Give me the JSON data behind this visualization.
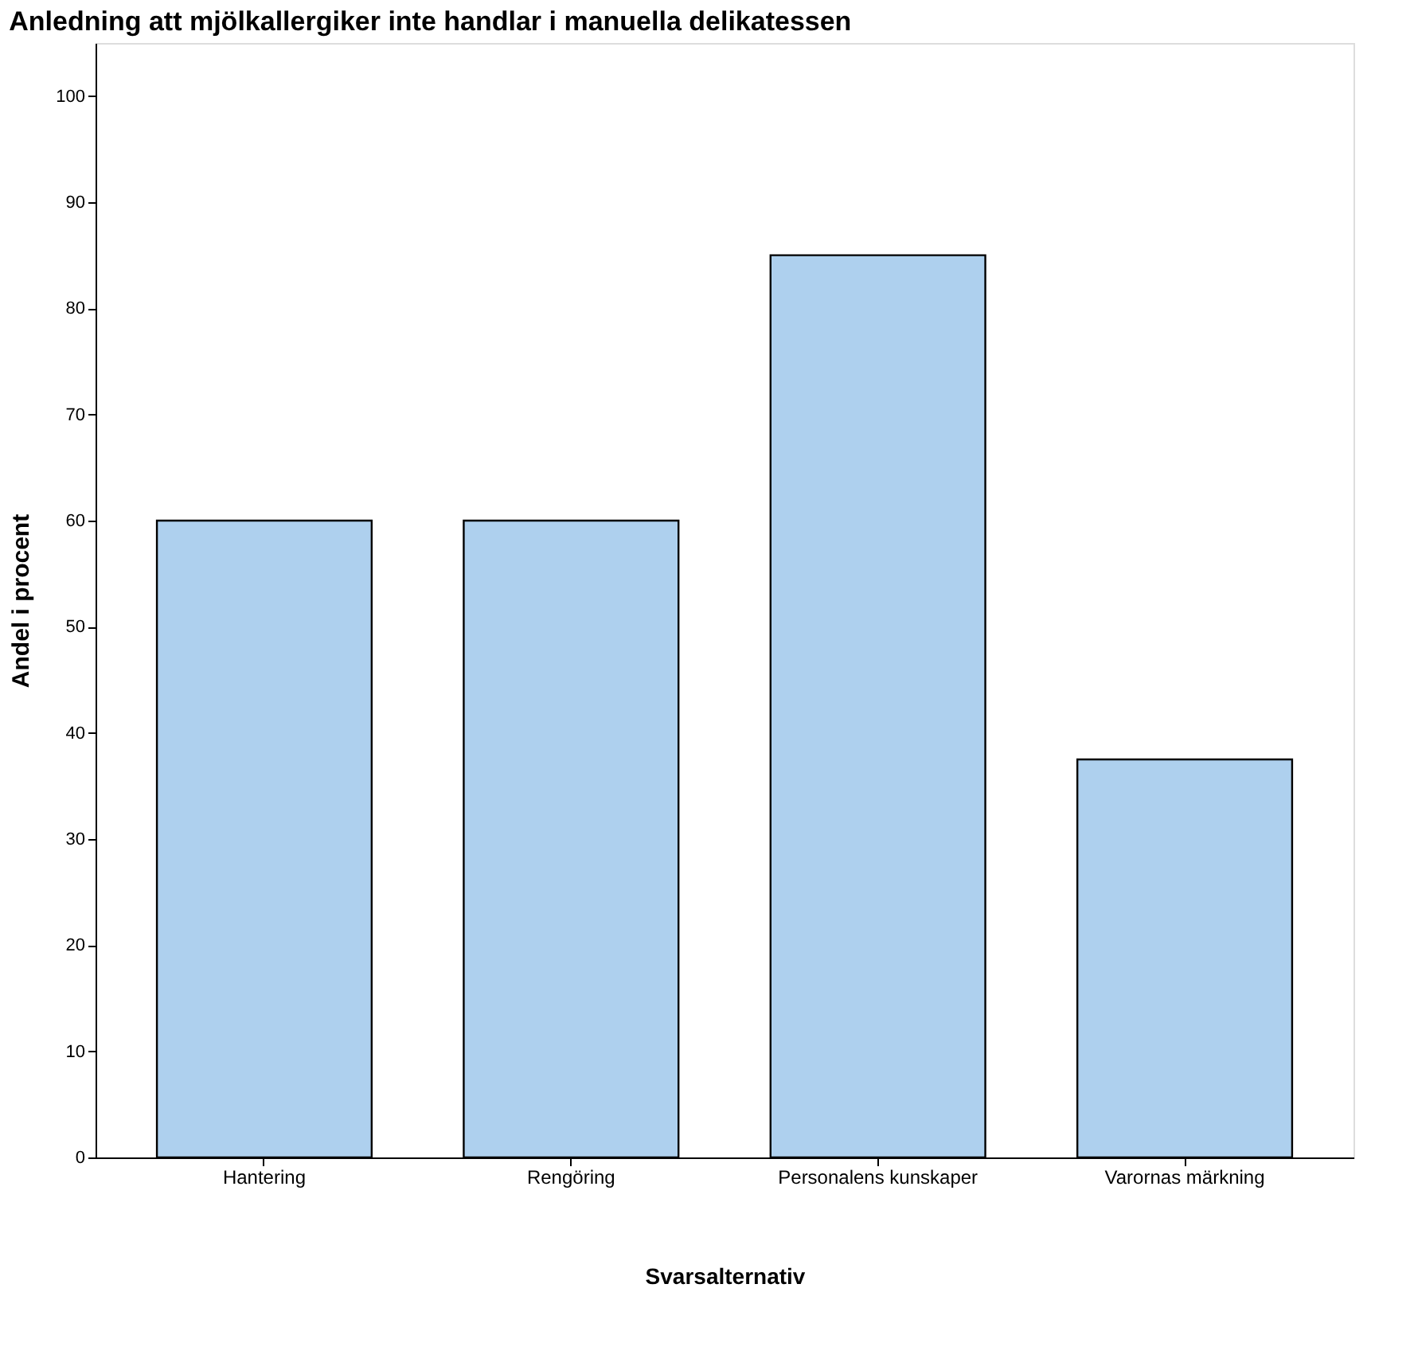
{
  "chart_data": {
    "type": "bar",
    "title": "Anledning att mjölkallergiker inte handlar i manuella delikatessen",
    "xlabel": "Svarsalternativ",
    "ylabel": "Andel i procent",
    "categories": [
      "Hantering",
      "Rengöring",
      "Personalens kunskaper",
      "Varornas märkning"
    ],
    "values": [
      60,
      60,
      85,
      37.5
    ],
    "color": "#aed0ee",
    "ylim": [
      0,
      105
    ],
    "yticks": [
      0,
      10,
      20,
      30,
      40,
      50,
      60,
      70,
      80,
      90,
      100
    ],
    "grid": false
  }
}
